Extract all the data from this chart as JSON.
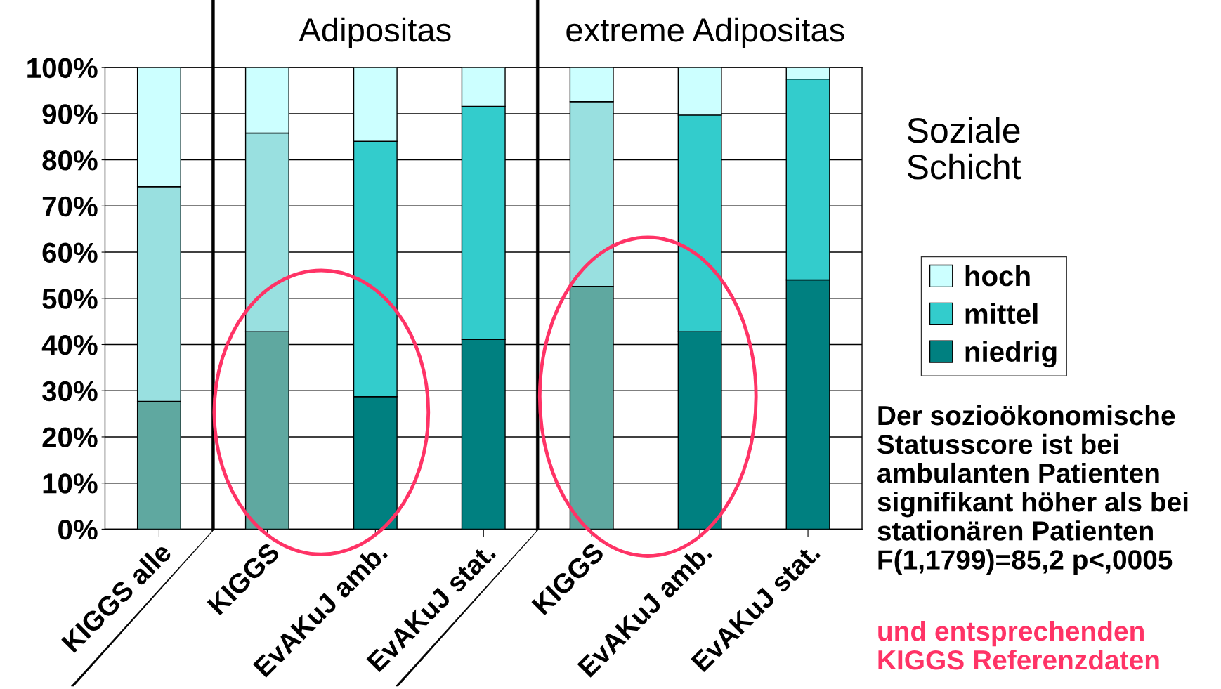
{
  "chart_data": {
    "type": "bar",
    "stacked": true,
    "categories": [
      "KIGGS alle",
      "KIGGS",
      "EvAKuJ amb.",
      "EvAKuJ stat.",
      "KIGGS",
      "EvAKuJ amb.",
      "EvAKuJ stat."
    ],
    "series": [
      {
        "name": "niedrig",
        "color": "#008080",
        "colors": [
          "#5fa8a0",
          "#5fa8a0",
          "#008080",
          "#008080",
          "#5fa8a0",
          "#008080",
          "#008080"
        ],
        "values": [
          27.7,
          42.8,
          28.7,
          41.1,
          52.6,
          42.8,
          54.0
        ]
      },
      {
        "name": "mittel",
        "color": "#33cccc",
        "colors": [
          "#99e0e0",
          "#99e0e0",
          "#33cccc",
          "#33cccc",
          "#99e0e0",
          "#33cccc",
          "#33cccc"
        ],
        "values": [
          46.5,
          43.0,
          55.3,
          50.5,
          40.0,
          46.9,
          43.5
        ]
      },
      {
        "name": "hoch",
        "color": "#ccffff",
        "colors": [
          "#ccffff",
          "#ccffff",
          "#ccffff",
          "#ccffff",
          "#ccffff",
          "#ccffff",
          "#ccffff"
        ],
        "values": [
          25.8,
          14.2,
          16.0,
          8.4,
          7.4,
          10.3,
          2.5
        ]
      }
    ],
    "ylim": [
      0,
      100
    ],
    "yticks": [
      {
        "value": 0,
        "label": "0%"
      },
      {
        "value": 10,
        "label": "10%"
      },
      {
        "value": 20,
        "label": "20%"
      },
      {
        "value": 30,
        "label": "30%"
      },
      {
        "value": 40,
        "label": "40%"
      },
      {
        "value": 50,
        "label": "50%"
      },
      {
        "value": 60,
        "label": "60%"
      },
      {
        "value": 70,
        "label": "70%"
      },
      {
        "value": 80,
        "label": "80%"
      },
      {
        "value": 90,
        "label": "90%"
      },
      {
        "value": 100,
        "label": "100%"
      }
    ],
    "grid": "y",
    "legend": "right",
    "legend_title": "Soziale\nSchicht",
    "annotations": [
      "Adipositas",
      "extreme Adipositas",
      "Der sozioökonomische\nStatusscore ist bei\nambulanten Patienten\nsignifikant höher als bei\nstationären Patienten\nF(1,1799)=85,2 p<,0005",
      "und entsprechenden\nKIGGS Referenzdaten"
    ]
  }
}
